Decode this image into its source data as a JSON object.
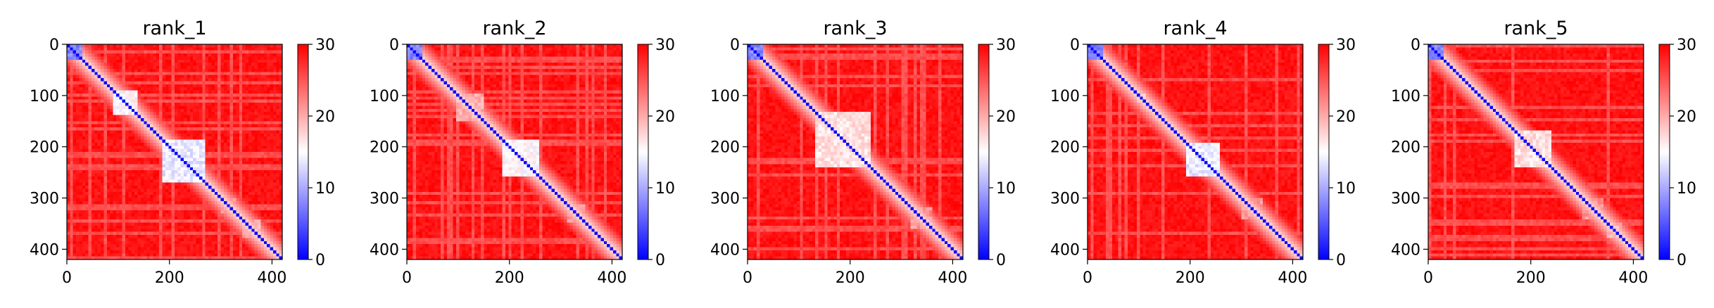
{
  "colors": {
    "low": "#0000ff",
    "mid": "#ffffff",
    "high": "#ff0000",
    "axis": "#000000"
  },
  "chart_data": [
    {
      "type": "heatmap",
      "title": "rank_1",
      "xlim": [
        0,
        420
      ],
      "ylim": [
        420,
        0
      ],
      "xticks": [
        0,
        200,
        400
      ],
      "yticks": [
        0,
        100,
        200,
        300,
        400
      ],
      "colorbar": {
        "min": 0,
        "max": 30,
        "ticks": [
          0,
          10,
          20,
          30
        ]
      },
      "blocks": [
        [
          0,
          30,
          0.2
        ],
        [
          92,
          135,
          0.45
        ],
        [
          185,
          270,
          0.4
        ],
        [
          300,
          330,
          0.65
        ],
        [
          345,
          375,
          0.6
        ]
      ]
    },
    {
      "type": "heatmap",
      "title": "rank_2",
      "xlim": [
        0,
        420
      ],
      "ylim": [
        420,
        0
      ],
      "xticks": [
        0,
        200,
        400
      ],
      "yticks": [
        0,
        100,
        200,
        300,
        400
      ],
      "colorbar": {
        "min": 0,
        "max": 30,
        "ticks": [
          0,
          10,
          20,
          30
        ]
      },
      "blocks": [
        [
          0,
          30,
          0.2
        ],
        [
          95,
          150,
          0.6
        ],
        [
          185,
          255,
          0.45
        ],
        [
          310,
          345,
          0.65
        ]
      ]
    },
    {
      "type": "heatmap",
      "title": "rank_3",
      "xlim": [
        0,
        420
      ],
      "ylim": [
        420,
        0
      ],
      "xticks": [
        0,
        200,
        400
      ],
      "yticks": [
        0,
        100,
        200,
        300,
        400
      ],
      "colorbar": {
        "min": 0,
        "max": 30,
        "ticks": [
          0,
          10,
          20,
          30
        ]
      },
      "blocks": [
        [
          0,
          30,
          0.2
        ],
        [
          130,
          240,
          0.5
        ],
        [
          320,
          360,
          0.65
        ]
      ]
    },
    {
      "type": "heatmap",
      "title": "rank_4",
      "xlim": [
        0,
        420
      ],
      "ylim": [
        420,
        0
      ],
      "xticks": [
        0,
        200,
        400
      ],
      "yticks": [
        0,
        100,
        200,
        300,
        400
      ],
      "colorbar": {
        "min": 0,
        "max": 30,
        "ticks": [
          0,
          10,
          20,
          30
        ]
      },
      "blocks": [
        [
          0,
          30,
          0.2
        ],
        [
          95,
          115,
          0.55
        ],
        [
          190,
          255,
          0.4
        ],
        [
          300,
          340,
          0.65
        ]
      ]
    },
    {
      "type": "heatmap",
      "title": "rank_5",
      "xlim": [
        0,
        420
      ],
      "ylim": [
        420,
        0
      ],
      "xticks": [
        0,
        200,
        400
      ],
      "yticks": [
        0,
        100,
        200,
        300,
        400
      ],
      "colorbar": {
        "min": 0,
        "max": 30,
        "ticks": [
          0,
          10,
          20,
          30
        ]
      },
      "blocks": [
        [
          0,
          30,
          0.2
        ],
        [
          170,
          240,
          0.5
        ],
        [
          300,
          340,
          0.65
        ],
        [
          350,
          380,
          0.6
        ]
      ]
    }
  ]
}
